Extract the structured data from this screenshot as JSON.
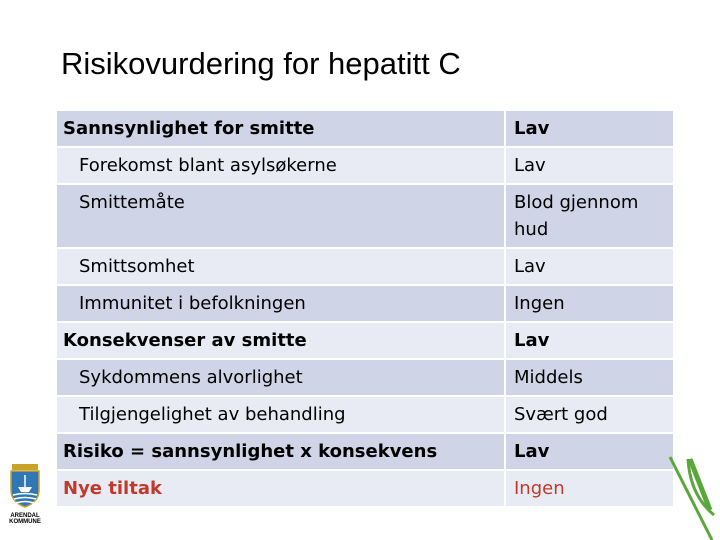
{
  "title": "Risikovurdering for hepatitt C",
  "rows": [
    {
      "label": "Sannsynlighet for smitte",
      "value": "Lav",
      "style": "bold"
    },
    {
      "label": "Forekomst blant asylsøkerne",
      "value": "Lav",
      "style": "indent"
    },
    {
      "label": "Smittemåte",
      "value": "Blod gjennom hud",
      "style": "indent"
    },
    {
      "label": "Smittsomhet",
      "value": "Lav",
      "style": "indent"
    },
    {
      "label": "Immunitet i befolkningen",
      "value": "Ingen",
      "style": "indent"
    },
    {
      "label": "Konsekvenser av smitte",
      "value": "Lav",
      "style": "bold"
    },
    {
      "label": "Sykdommens alvorlighet",
      "value": "Middels",
      "style": "indent"
    },
    {
      "label": "Tilgjengelighet av behandling",
      "value": "Svært god",
      "style": "indent"
    },
    {
      "label": "Risiko = sannsynlighet x konsekvens",
      "value": "Lav",
      "style": "bold"
    },
    {
      "label": "Nye tiltak",
      "value": "Ingen",
      "style": "red-bold"
    }
  ],
  "logo": {
    "text_line1": "ARENDAL",
    "text_line2": "KOMMUNE"
  },
  "colors": {
    "row_dark": "#cfd5e7",
    "row_light": "#e8ebf4",
    "accent_red": "#c0392b",
    "leaf_green": "#5aa83c"
  }
}
